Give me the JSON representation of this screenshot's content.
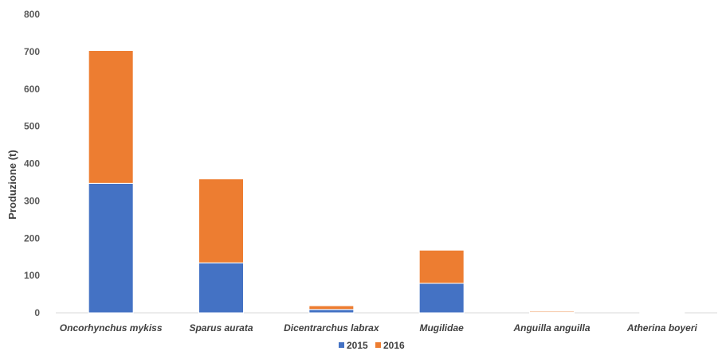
{
  "chart_data": {
    "type": "bar",
    "stacked": true,
    "categories": [
      "Oncorhynchus mykiss",
      "Sparus aurata",
      "Dicentrarchus labrax",
      "Mugilidae",
      "Anguilla anguilla",
      "Atherina boyeri"
    ],
    "series": [
      {
        "name": "2015",
        "color": "#4472C4",
        "values": [
          347,
          134,
          9,
          79,
          1,
          0
        ]
      },
      {
        "name": "2016",
        "color": "#ED7D31",
        "values": [
          356,
          225,
          10,
          89,
          3,
          1
        ]
      }
    ],
    "ylabel": "Produzione (t)",
    "ylim": [
      0,
      800
    ],
    "yticks": [
      0,
      100,
      200,
      300,
      400,
      500,
      600,
      700,
      800
    ],
    "grid": false,
    "legend": "bottom"
  }
}
